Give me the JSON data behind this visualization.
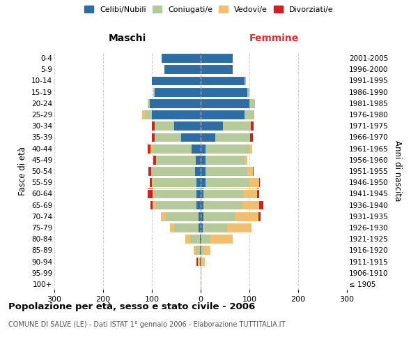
{
  "age_groups": [
    "100+",
    "95-99",
    "90-94",
    "85-89",
    "80-84",
    "75-79",
    "70-74",
    "65-69",
    "60-64",
    "55-59",
    "50-54",
    "45-49",
    "40-44",
    "35-39",
    "30-34",
    "25-29",
    "20-24",
    "15-19",
    "10-14",
    "5-9",
    "0-4"
  ],
  "birth_years": [
    "≤ 1905",
    "1906-1910",
    "1911-1915",
    "1916-1920",
    "1921-1925",
    "1926-1930",
    "1931-1935",
    "1936-1940",
    "1941-1945",
    "1946-1950",
    "1951-1955",
    "1956-1960",
    "1961-1965",
    "1966-1970",
    "1971-1975",
    "1976-1980",
    "1981-1985",
    "1986-1990",
    "1991-1995",
    "1996-2000",
    "2001-2005"
  ],
  "male_celibi": [
    0,
    0,
    2,
    2,
    2,
    5,
    5,
    8,
    8,
    8,
    12,
    10,
    18,
    40,
    55,
    100,
    105,
    95,
    100,
    75,
    80
  ],
  "male_coniugati": [
    0,
    0,
    2,
    8,
    20,
    50,
    68,
    85,
    88,
    90,
    88,
    82,
    80,
    55,
    40,
    15,
    3,
    2,
    0,
    0,
    0
  ],
  "male_vedovi": [
    0,
    0,
    2,
    5,
    10,
    8,
    8,
    5,
    3,
    2,
    2,
    0,
    5,
    0,
    0,
    5,
    0,
    0,
    0,
    0,
    0
  ],
  "male_divorziati": [
    0,
    0,
    2,
    0,
    0,
    0,
    0,
    5,
    10,
    5,
    5,
    5,
    5,
    5,
    5,
    0,
    0,
    0,
    0,
    0,
    0
  ],
  "female_nubili": [
    0,
    0,
    0,
    0,
    2,
    4,
    5,
    5,
    5,
    10,
    10,
    10,
    10,
    30,
    45,
    90,
    100,
    95,
    90,
    65,
    65
  ],
  "female_coniugate": [
    0,
    0,
    0,
    5,
    18,
    50,
    65,
    80,
    82,
    88,
    85,
    80,
    90,
    72,
    58,
    20,
    12,
    5,
    3,
    0,
    0
  ],
  "female_vedove": [
    0,
    2,
    8,
    15,
    45,
    50,
    48,
    35,
    28,
    22,
    12,
    5,
    5,
    0,
    0,
    0,
    0,
    0,
    0,
    0,
    0
  ],
  "female_divorziate": [
    0,
    0,
    0,
    0,
    0,
    0,
    5,
    8,
    5,
    2,
    2,
    0,
    0,
    5,
    5,
    0,
    0,
    0,
    0,
    0,
    0
  ],
  "colors": {
    "celibi": "#2e6da4",
    "coniugati": "#b5c99a",
    "vedovi": "#f0c070",
    "divorziati": "#cc2222"
  },
  "title": "Popolazione per età, sesso e stato civile - 2006",
  "subtitle": "COMUNE DI SALVE (LE) - Dati ISTAT 1° gennaio 2006 - Elaborazione TUTTITALIA.IT",
  "legend_labels": [
    "Celibi/Nubili",
    "Coniugati/e",
    "Vedovi/e",
    "Divorziati/e"
  ],
  "xlim": 300
}
